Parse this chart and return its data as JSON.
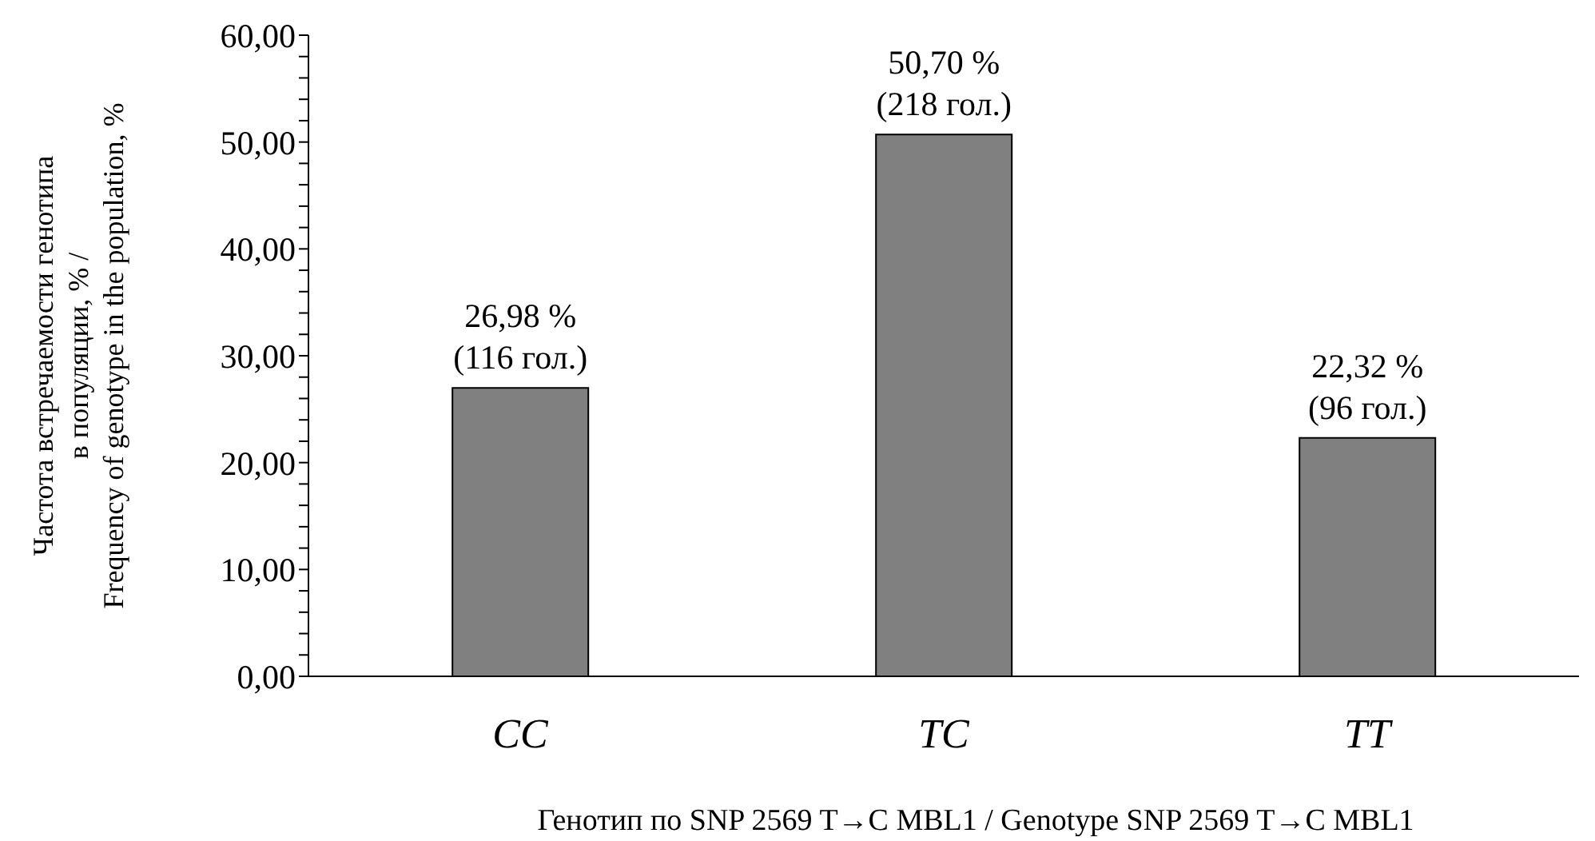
{
  "chart_data": {
    "type": "bar",
    "xlabel": "Генотип по SNP 2569  T→C MBL1 / Genotype SNP 2569  T→C MBL1",
    "ylabel": "Частота встречаемости генотипа\nв популяции, % /\nFrequency of genotype in the population, %",
    "categories": [
      "CC",
      "TC",
      "TT"
    ],
    "values": [
      26.98,
      50.7,
      22.32
    ],
    "value_labels": [
      "26,98 %\n(116 гол.)",
      "50,70 %\n(218 гол.)",
      "22,32 %\n(96 гол.)"
    ],
    "color": "#808080",
    "ylim": [
      0,
      60
    ],
    "yticks": [
      {
        "value": 0,
        "label": "0,00"
      },
      {
        "value": 2,
        "label": null
      },
      {
        "value": 4,
        "label": null
      },
      {
        "value": 6,
        "label": null
      },
      {
        "value": 8,
        "label": null
      },
      {
        "value": 10,
        "label": "10,00"
      },
      {
        "value": 12,
        "label": null
      },
      {
        "value": 14,
        "label": null
      },
      {
        "value": 16,
        "label": null
      },
      {
        "value": 18,
        "label": null
      },
      {
        "value": 20,
        "label": "20,00"
      },
      {
        "value": 22,
        "label": null
      },
      {
        "value": 24,
        "label": null
      },
      {
        "value": 26,
        "label": null
      },
      {
        "value": 28,
        "label": null
      },
      {
        "value": 30,
        "label": "30,00"
      },
      {
        "value": 32,
        "label": null
      },
      {
        "value": 34,
        "label": null
      },
      {
        "value": 36,
        "label": null
      },
      {
        "value": 38,
        "label": null
      },
      {
        "value": 40,
        "label": "40,00"
      },
      {
        "value": 42,
        "label": null
      },
      {
        "value": 44,
        "label": null
      },
      {
        "value": 46,
        "label": null
      },
      {
        "value": 48,
        "label": null
      },
      {
        "value": 50,
        "label": "50,00"
      },
      {
        "value": 52,
        "label": null
      },
      {
        "value": 54,
        "label": null
      },
      {
        "value": 56,
        "label": null
      },
      {
        "value": 58,
        "label": null
      },
      {
        "value": 60,
        "label": "60,00"
      }
    ],
    "grid": false,
    "legend": false
  }
}
